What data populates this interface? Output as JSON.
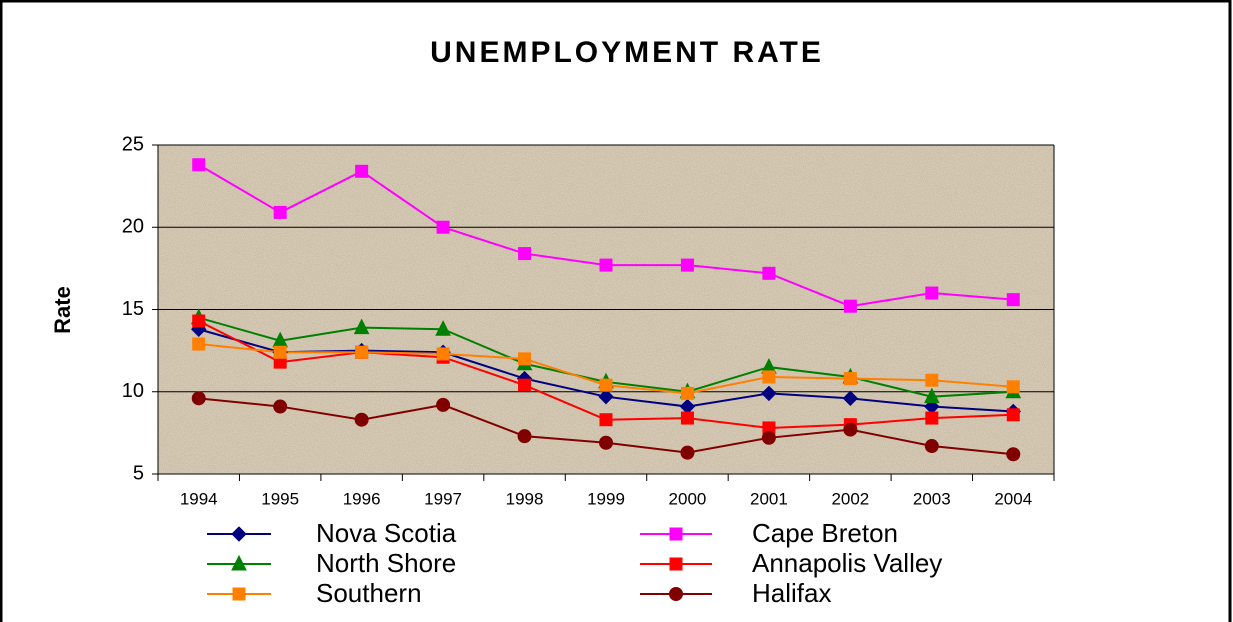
{
  "chart_data": {
    "type": "line",
    "title": "UNEMPLOYMENT RATE",
    "y_label": "Rate",
    "categories": [
      "1994",
      "1995",
      "1996",
      "1997",
      "1998",
      "1999",
      "2000",
      "2001",
      "2002",
      "2003",
      "2004"
    ],
    "series": [
      {
        "name": "Nova Scotia",
        "color": "#000080",
        "marker": "diamond",
        "values": [
          13.8,
          12.4,
          12.5,
          12.4,
          10.8,
          9.7,
          9.1,
          9.9,
          9.6,
          9.1,
          8.8
        ]
      },
      {
        "name": "Cape Breton",
        "color": "#ff00ff",
        "marker": "square",
        "values": [
          23.8,
          20.9,
          23.4,
          20.0,
          18.4,
          17.7,
          17.7,
          17.2,
          15.2,
          16.0,
          15.6
        ]
      },
      {
        "name": "North Shore",
        "color": "#008000",
        "marker": "triangle",
        "values": [
          14.5,
          13.1,
          13.9,
          13.8,
          11.7,
          10.6,
          10.0,
          11.5,
          10.9,
          9.7,
          10.0
        ]
      },
      {
        "name": "Annapolis Valley",
        "color": "#ff0000",
        "marker": "square",
        "values": [
          14.3,
          11.8,
          12.4,
          12.1,
          10.4,
          8.3,
          8.4,
          7.8,
          8.0,
          8.4,
          8.6
        ]
      },
      {
        "name": "Southern",
        "color": "#ff7f00",
        "marker": "square",
        "values": [
          12.9,
          12.4,
          12.4,
          12.3,
          12.0,
          10.4,
          9.9,
          10.9,
          10.8,
          10.7,
          10.3
        ]
      },
      {
        "name": "Halifax",
        "color": "#800000",
        "marker": "circle",
        "values": [
          9.6,
          9.1,
          8.3,
          9.2,
          7.3,
          6.9,
          6.3,
          7.2,
          7.7,
          6.7,
          6.2
        ]
      }
    ],
    "ylim": [
      5,
      25
    ],
    "yticks": [
      5,
      10,
      15,
      20,
      25
    ],
    "grid": true
  }
}
